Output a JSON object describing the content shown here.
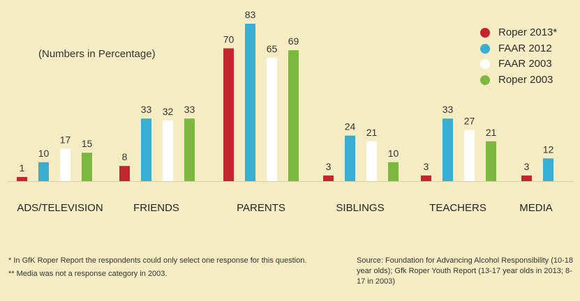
{
  "subtitle": "(Numbers in Percentage)",
  "footnotes": {
    "left": [
      "* In GfK Roper Report the respondents could only select one response for this question.",
      "** Media was not a response category in 2003."
    ],
    "source": "Source: Foundation for Advancing Alcohol Responsibility (10-18 year olds); Gfk Roper Youth Report (13-17 year olds in 2013; 8-17 in 2003)"
  },
  "colors": {
    "background": "#f5ecc4",
    "roper2013": "#c4262e",
    "faar2012": "#3aaed0",
    "faar2003": "#ffffff",
    "roper2003": "#7cb83f",
    "baseline": "#d9cfa6"
  },
  "chart_data": {
    "type": "bar",
    "categories": [
      "ADS/TELEVISION",
      "FRIENDS",
      "PARENTS",
      "SIBLINGS",
      "TEACHERS",
      "MEDIA"
    ],
    "series": [
      {
        "name": "Roper 2013*",
        "color": "#c4262e",
        "values": [
          1,
          8,
          70,
          3,
          3,
          3
        ]
      },
      {
        "name": "FAAR 2012",
        "color": "#3aaed0",
        "values": [
          10,
          33,
          83,
          24,
          33,
          12
        ]
      },
      {
        "name": "FAAR 2003",
        "color": "#ffffff",
        "values": [
          17,
          32,
          65,
          21,
          27,
          null
        ]
      },
      {
        "name": "Roper 2003",
        "color": "#7cb83f",
        "values": [
          15,
          33,
          69,
          10,
          21,
          null
        ]
      }
    ],
    "ylim": [
      0,
      90
    ],
    "grid": false,
    "legend_position": "top-right"
  }
}
